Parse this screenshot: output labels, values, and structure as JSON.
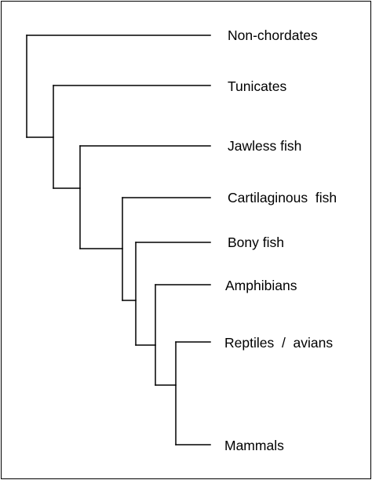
{
  "tree": {
    "taxa": [
      "Non-chordates",
      "Tunicates",
      "Jawless fish",
      "Cartilaginous  fish",
      "Bony fish",
      "Amphibians",
      "Reptiles  /  avians",
      "Mammals"
    ],
    "line_color": "#000000"
  }
}
